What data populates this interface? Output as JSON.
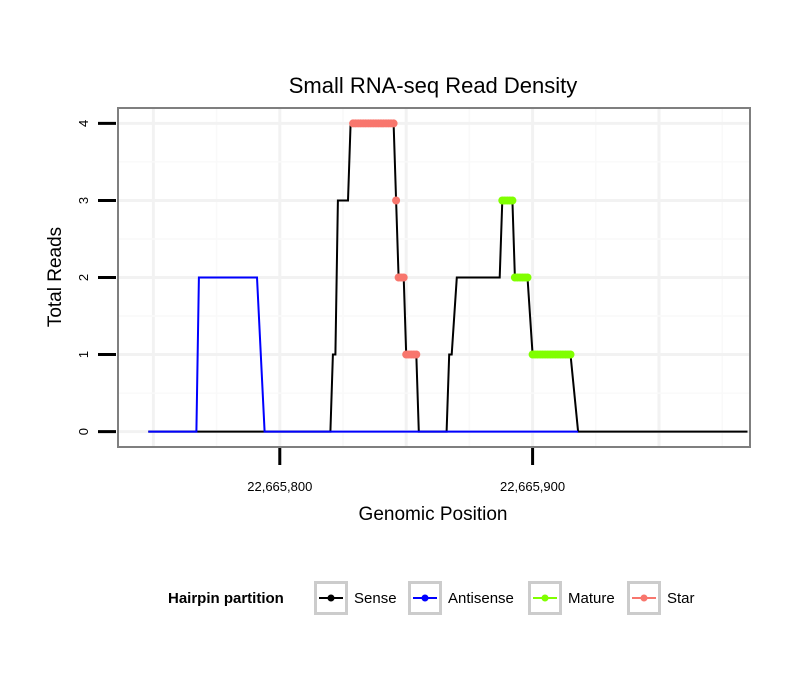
{
  "chart_data": {
    "type": "line",
    "title": "Small RNA-seq Read Density",
    "xlabel": "Genomic Position",
    "ylabel": "Total Reads",
    "xlim": [
      22665736,
      22665986
    ],
    "ylim": [
      -0.2,
      4.2
    ],
    "x_ticks": [
      22665800,
      22665900
    ],
    "x_tick_labels": [
      "22,665,800",
      "22,665,900"
    ],
    "y_ticks": [
      0,
      1,
      2,
      3,
      4
    ],
    "y_tick_labels": [
      "0",
      "1",
      "2",
      "3",
      "4"
    ],
    "grid": true,
    "legend": {
      "title": "Hairpin partition",
      "position": "bottom",
      "entries": [
        "Sense",
        "Antisense",
        "Mature",
        "Star"
      ]
    },
    "series": [
      {
        "name": "Sense",
        "color": "#000000",
        "style": "line",
        "points": [
          [
            22665748,
            0
          ],
          [
            22665820,
            0
          ],
          [
            22665821,
            1
          ],
          [
            22665822,
            1
          ],
          [
            22665823,
            3
          ],
          [
            22665827,
            3
          ],
          [
            22665828,
            4
          ],
          [
            22665837,
            4
          ],
          [
            22665845,
            4
          ],
          [
            22665846,
            3
          ],
          [
            22665847,
            2
          ],
          [
            22665849,
            2
          ],
          [
            22665850,
            1
          ],
          [
            22665854,
            1
          ],
          [
            22665855,
            0
          ],
          [
            22665866,
            0
          ],
          [
            22665867,
            1
          ],
          [
            22665868,
            1
          ],
          [
            22665870,
            2
          ],
          [
            22665887,
            2
          ],
          [
            22665888,
            3
          ],
          [
            22665892,
            3
          ],
          [
            22665893,
            2
          ],
          [
            22665898,
            2
          ],
          [
            22665900,
            1
          ],
          [
            22665915,
            1
          ],
          [
            22665918,
            0
          ],
          [
            22665985,
            0
          ]
        ]
      },
      {
        "name": "Antisense",
        "color": "#0000ff",
        "style": "line",
        "points": [
          [
            22665748,
            0
          ],
          [
            22665767,
            0
          ],
          [
            22665768,
            2
          ],
          [
            22665791,
            2
          ],
          [
            22665794,
            0
          ],
          [
            22665918,
            0
          ]
        ]
      },
      {
        "name": "Mature",
        "color": "#80ff00",
        "style": "dots",
        "segments": [
          {
            "y": 3,
            "x_from": 22665888,
            "x_to": 22665892
          },
          {
            "y": 2,
            "x_from": 22665893,
            "x_to": 22665898
          },
          {
            "y": 1,
            "x_from": 22665900,
            "x_to": 22665915
          }
        ]
      },
      {
        "name": "Star",
        "color": "#f8766d",
        "style": "dots",
        "segments": [
          {
            "y": 4,
            "x_from": 22665829,
            "x_to": 22665845
          },
          {
            "y": 3,
            "x_from": 22665846,
            "x_to": 22665846
          },
          {
            "y": 2,
            "x_from": 22665847,
            "x_to": 22665849
          },
          {
            "y": 1,
            "x_from": 22665850,
            "x_to": 22665854
          }
        ]
      }
    ]
  }
}
